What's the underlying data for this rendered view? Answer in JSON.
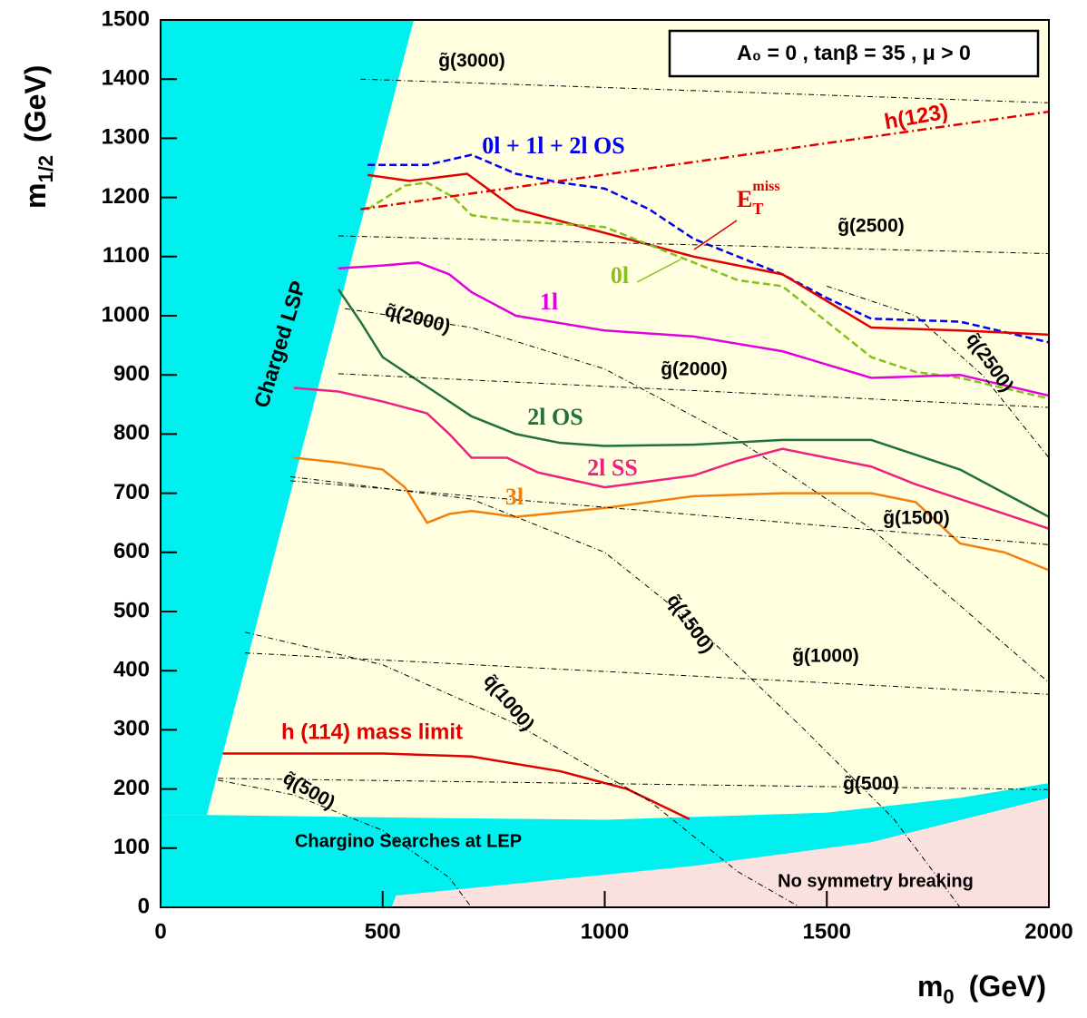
{
  "chart_data": {
    "type": "line",
    "x_label": {
      "main": "m",
      "sub": "0",
      "unit": "(GeV)"
    },
    "y_label": {
      "main": "m",
      "sub": "1/2",
      "unit": "(GeV)"
    },
    "annotation": "A₀ = 0 ,  tanβ = 35 ,  μ > 0",
    "xlim": [
      0,
      2000
    ],
    "xticks": [
      0,
      500,
      1000,
      1500,
      2000
    ],
    "ylim": [
      0,
      1500
    ],
    "yticks": [
      0,
      100,
      200,
      300,
      400,
      500,
      600,
      700,
      800,
      900,
      1000,
      1100,
      1200,
      1300,
      1400,
      1500
    ],
    "regions": [
      {
        "name": "Charged LSP",
        "color": "#00f0f0",
        "x": [
          0,
          570,
          104,
          0
        ],
        "values": [
          1500,
          1500,
          156,
          156
        ]
      },
      {
        "name": "Chargino Searches at LEP",
        "color": "#00f0f0",
        "x": [
          0,
          104,
          500,
          1000,
          1500,
          1800,
          2000,
          2000,
          0
        ],
        "values": [
          156,
          156,
          152,
          148,
          160,
          185,
          210,
          0,
          0
        ]
      },
      {
        "name": "No symmetry breaking",
        "color": "#fbe0e0",
        "x": [
          520,
          530,
          800,
          1200,
          1600,
          2000,
          2000
        ],
        "values": [
          0,
          20,
          40,
          70,
          110,
          185,
          0
        ]
      }
    ],
    "series": [
      {
        "name": "0l + 1l + 2l OS",
        "color": "#0000ee",
        "dash": "dashed",
        "x": [
          466,
          600,
          700,
          800,
          900,
          1000,
          1100,
          1200,
          1300,
          1400,
          1500,
          1600,
          1800,
          2000
        ],
        "values": [
          1255,
          1255,
          1272,
          1240,
          1225,
          1215,
          1180,
          1130,
          1100,
          1070,
          1030,
          995,
          990,
          955
        ]
      },
      {
        "name": {
          "main": "E",
          "sub": "T",
          "sup": "miss"
        },
        "color": "#e00000",
        "dash": "solid",
        "x": [
          466,
          560,
          690,
          800,
          1000,
          1200,
          1400,
          1600,
          1800,
          2000
        ],
        "values": [
          1238,
          1228,
          1240,
          1180,
          1140,
          1100,
          1070,
          980,
          975,
          968
        ]
      },
      {
        "name": "0l",
        "color": "#88c020",
        "dash": "dashed",
        "x": [
          466,
          550,
          600,
          660,
          700,
          800,
          1000,
          1100,
          1200,
          1300,
          1400,
          1500,
          1600,
          1700,
          1800,
          2000
        ],
        "values": [
          1180,
          1220,
          1225,
          1200,
          1170,
          1160,
          1150,
          1120,
          1090,
          1060,
          1050,
          990,
          930,
          905,
          895,
          860
        ]
      },
      {
        "name": "1l",
        "color": "#e000e0",
        "dash": "solid",
        "x": [
          400,
          500,
          580,
          650,
          700,
          800,
          1000,
          1200,
          1400,
          1600,
          1800,
          2000
        ],
        "values": [
          1080,
          1085,
          1090,
          1070,
          1040,
          1000,
          975,
          965,
          940,
          895,
          900,
          865
        ]
      },
      {
        "name": "2l OS",
        "color": "#207040",
        "dash": "solid",
        "x": [
          400,
          450,
          500,
          600,
          700,
          800,
          900,
          1000,
          1200,
          1400,
          1600,
          1700,
          1800,
          2000
        ],
        "values": [
          1045,
          990,
          930,
          880,
          830,
          800,
          785,
          780,
          782,
          790,
          790,
          765,
          740,
          660
        ]
      },
      {
        "name": "2l SS",
        "color": "#f02080",
        "dash": "solid",
        "x": [
          300,
          400,
          500,
          600,
          650,
          700,
          780,
          850,
          1000,
          1200,
          1300,
          1400,
          1500,
          1600,
          1700,
          1800,
          2000
        ],
        "values": [
          878,
          872,
          855,
          835,
          800,
          760,
          760,
          735,
          710,
          730,
          755,
          775,
          760,
          745,
          715,
          690,
          640
        ]
      },
      {
        "name": "3l",
        "color": "#f08010",
        "dash": "solid",
        "x": [
          300,
          400,
          500,
          550,
          600,
          650,
          700,
          800,
          1000,
          1200,
          1400,
          1600,
          1700,
          1800,
          1900,
          2000
        ],
        "values": [
          760,
          752,
          740,
          710,
          650,
          665,
          670,
          660,
          675,
          695,
          700,
          700,
          685,
          615,
          600,
          570
        ]
      },
      {
        "name": "h (114) mass limit",
        "color": "#e00000",
        "dash": "solid",
        "x": [
          140,
          500,
          700,
          900,
          1050,
          1191
        ],
        "values": [
          260,
          260,
          255,
          230,
          200,
          149
        ]
      },
      {
        "name": "h(123)",
        "color": "#e00000",
        "dash": "dashdot",
        "x": [
          450,
          2000
        ],
        "values": [
          1180,
          1345
        ]
      },
      {
        "name": "g̃(3000)",
        "color": "#000000",
        "dash": "thin",
        "x": [
          450,
          2000
        ],
        "values": [
          1400,
          1360
        ]
      },
      {
        "name": "g̃(2500)",
        "color": "#000000",
        "dash": "thin",
        "x": [
          400,
          2000
        ],
        "values": [
          1135,
          1105
        ]
      },
      {
        "name": "g̃(2000)",
        "color": "#000000",
        "dash": "thin",
        "x": [
          400,
          2000
        ],
        "values": [
          902,
          845
        ]
      },
      {
        "name": "g̃(1500)",
        "color": "#000000",
        "dash": "thin",
        "x": [
          292,
          2000
        ],
        "values": [
          721,
          613
        ]
      },
      {
        "name": "g̃(1000)",
        "color": "#000000",
        "dash": "thin",
        "x": [
          190,
          2000
        ],
        "values": [
          430,
          360
        ]
      },
      {
        "name": "g̃(500)",
        "color": "#000000",
        "dash": "thin",
        "x": [
          129,
          2000
        ],
        "values": [
          218,
          199
        ]
      },
      {
        "name": "q̃(2000)",
        "color": "#000000",
        "dash": "thin",
        "x": [
          415,
          700,
          1000,
          1300,
          1600,
          2000
        ],
        "values": [
          1012,
          980,
          910,
          790,
          640,
          380
        ]
      },
      {
        "name": "q̃(2500)",
        "color": "#000000",
        "dash": "thin",
        "x": [
          1500,
          1700,
          1850,
          2000
        ],
        "values": [
          1050,
          1000,
          900,
          760
        ]
      },
      {
        "name": "q̃(1500)",
        "color": "#000000",
        "dash": "thin",
        "x": [
          292,
          700,
          1000,
          1200,
          1450,
          1650,
          1800
        ],
        "values": [
          728,
          690,
          600,
          480,
          300,
          150,
          0
        ]
      },
      {
        "name": "q̃(1000)",
        "color": "#000000",
        "dash": "thin",
        "x": [
          190,
          500,
          800,
          1100,
          1300,
          1440
        ],
        "values": [
          465,
          410,
          310,
          180,
          60,
          0
        ]
      },
      {
        "name": "q̃(500)",
        "color": "#000000",
        "dash": "thin",
        "x": [
          129,
          300,
          500,
          650,
          700
        ],
        "values": [
          215,
          190,
          130,
          50,
          0
        ]
      }
    ]
  }
}
